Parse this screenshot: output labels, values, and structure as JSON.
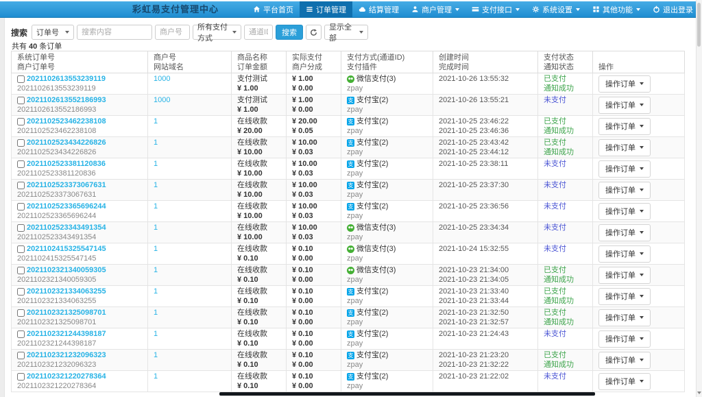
{
  "navbar": {
    "title": "彩虹易支付管理中心",
    "items": [
      {
        "name": "nav-item-home",
        "label": "平台首页",
        "icon": "home-icon",
        "state": "",
        "caret": ""
      },
      {
        "name": "nav-item-orders",
        "label": "订单管理",
        "icon": "orders-icon",
        "state": "active",
        "caret": ""
      },
      {
        "name": "nav-item-settlement",
        "label": "结算管理",
        "icon": "settlement-icon",
        "state": "",
        "caret": ""
      },
      {
        "name": "nav-item-merchants",
        "label": "商户管理",
        "icon": "merchant-icon",
        "state": "",
        "caret": "show"
      },
      {
        "name": "nav-item-pay-api",
        "label": "支付接口",
        "icon": "pay-api-icon",
        "state": "",
        "caret": "show"
      },
      {
        "name": "nav-item-settings",
        "label": "系统设置",
        "icon": "settings-icon",
        "state": "",
        "caret": "show"
      },
      {
        "name": "nav-item-other",
        "label": "其他功能",
        "icon": "other-icon",
        "state": "",
        "caret": "show"
      },
      {
        "name": "nav-item-logout",
        "label": "退出登录",
        "icon": "logout-icon",
        "state": "",
        "caret": ""
      }
    ]
  },
  "search": {
    "label": "搜索",
    "type_select": "订单号",
    "content_placeholder": "搜索内容",
    "merchant_placeholder": "商户号",
    "paytype_select": "所有支付方式",
    "channel_placeholder": "通道ID",
    "search_button": "搜索",
    "show_select": "显示全部",
    "total_prefix": "共有",
    "total_count": "40",
    "total_suffix": "条订单"
  },
  "table": {
    "headers": [
      {
        "line1": "系统订单号",
        "line2": "商户订单号"
      },
      {
        "line1": "商户号",
        "line2": "网站域名"
      },
      {
        "line1": "商品名称",
        "line2": "订单金额"
      },
      {
        "line1": "实际支付",
        "line2": "商户分成"
      },
      {
        "line1": "支付方式(通道ID)",
        "line2": "支付插件"
      },
      {
        "line1": "创建时间",
        "line2": "完成时间"
      },
      {
        "line1": "支付状态",
        "line2": "通知状态"
      },
      {
        "line1": "",
        "line2": "操作"
      }
    ],
    "action_button": "操作订单",
    "rows": [
      {
        "sys_no": "2021102613553239119",
        "merchant_no": "2021102613553239119",
        "merchant_id": "1000",
        "domain": "",
        "product": "支付测试",
        "amount": "¥ 1.00",
        "paid": "¥ 1.00",
        "share": "¥ 0.00",
        "pay": {
          "icon": "wechat-pay-icon",
          "method": "微信支付(3)",
          "plugin": "zpay"
        },
        "created": "2021-10-26 13:55:32",
        "completed": "",
        "status": "已支付",
        "status_class": "st-paid",
        "notify": "通知成功"
      },
      {
        "sys_no": "2021102613552186993",
        "merchant_no": "2021102613552186993",
        "merchant_id": "1000",
        "domain": "",
        "product": "支付测试",
        "amount": "¥ 1.00",
        "paid": "¥ 1.00",
        "share": "¥ 0.00",
        "pay": {
          "icon": "alipay-icon",
          "method": "支付宝(2)",
          "plugin": "zpay"
        },
        "created": "2021-10-26 13:55:21",
        "completed": "",
        "status": "未支付",
        "status_class": "st-unpaid",
        "notify": ""
      },
      {
        "sys_no": "2021102523462238108",
        "merchant_no": "2021102523462238108",
        "merchant_id": "1",
        "domain": "",
        "product": "在线收款",
        "amount": "¥ 20.00",
        "paid": "¥ 20.00",
        "share": "¥ 0.05",
        "pay": {
          "icon": "alipay-icon",
          "method": "支付宝(2)",
          "plugin": "zpay"
        },
        "created": "2021-10-25 23:46:22",
        "completed": "2021-10-25 23:46:36",
        "status": "已支付",
        "status_class": "st-paid",
        "notify": "通知成功"
      },
      {
        "sys_no": "2021102523434226826",
        "merchant_no": "2021102523434226826",
        "merchant_id": "1",
        "domain": "",
        "product": "在线收款",
        "amount": "¥ 10.00",
        "paid": "¥ 10.00",
        "share": "¥ 0.03",
        "pay": {
          "icon": "alipay-icon",
          "method": "支付宝(2)",
          "plugin": "zpay"
        },
        "created": "2021-10-25 23:43:42",
        "completed": "2021-10-25 23:44:12",
        "status": "已支付",
        "status_class": "st-paid",
        "notify": "通知成功"
      },
      {
        "sys_no": "2021102523381120836",
        "merchant_no": "2021102523381120836",
        "merchant_id": "1",
        "domain": "",
        "product": "在线收款",
        "amount": "¥ 10.00",
        "paid": "¥ 10.00",
        "share": "¥ 0.03",
        "pay": {
          "icon": "alipay-icon",
          "method": "支付宝(2)",
          "plugin": "zpay"
        },
        "created": "2021-10-25 23:38:11",
        "completed": "",
        "status": "未支付",
        "status_class": "st-unpaid",
        "notify": ""
      },
      {
        "sys_no": "2021102523373067631",
        "merchant_no": "2021102523373067631",
        "merchant_id": "1",
        "domain": "",
        "product": "在线收款",
        "amount": "¥ 10.00",
        "paid": "¥ 10.00",
        "share": "¥ 0.03",
        "pay": {
          "icon": "alipay-icon",
          "method": "支付宝(2)",
          "plugin": "zpay"
        },
        "created": "2021-10-25 23:37:30",
        "completed": "",
        "status": "未支付",
        "status_class": "st-unpaid",
        "notify": ""
      },
      {
        "sys_no": "2021102523365696244",
        "merchant_no": "2021102523365696244",
        "merchant_id": "1",
        "domain": "",
        "product": "在线收款",
        "amount": "¥ 10.00",
        "paid": "¥ 10.00",
        "share": "¥ 0.03",
        "pay": {
          "icon": "alipay-icon",
          "method": "支付宝(2)",
          "plugin": "zpay"
        },
        "created": "2021-10-25 23:36:56",
        "completed": "",
        "status": "未支付",
        "status_class": "st-unpaid",
        "notify": ""
      },
      {
        "sys_no": "2021102523343491354",
        "merchant_no": "2021102523343491354",
        "merchant_id": "1",
        "domain": "",
        "product": "在线收款",
        "amount": "¥ 10.00",
        "paid": "¥ 10.00",
        "share": "¥ 0.03",
        "pay": {
          "icon": "wechat-pay-icon",
          "method": "微信支付(3)",
          "plugin": "zpay"
        },
        "created": "2021-10-25 23:34:34",
        "completed": "",
        "status": "未支付",
        "status_class": "st-unpaid",
        "notify": ""
      },
      {
        "sys_no": "2021102415325547145",
        "merchant_no": "2021102415325547145",
        "merchant_id": "1",
        "domain": "",
        "product": "在线收款",
        "amount": "¥ 0.10",
        "paid": "¥ 0.10",
        "share": "¥ 0.00",
        "pay": {
          "icon": "wechat-pay-icon",
          "method": "微信支付(3)",
          "plugin": "zpay"
        },
        "created": "2021-10-24 15:32:55",
        "completed": "",
        "status": "未支付",
        "status_class": "st-unpaid",
        "notify": ""
      },
      {
        "sys_no": "2021102321340059305",
        "merchant_no": "2021102321340059305",
        "merchant_id": "1",
        "domain": "",
        "product": "在线收款",
        "amount": "¥ 0.10",
        "paid": "¥ 0.10",
        "share": "¥ 0.00",
        "pay": {
          "icon": "wechat-pay-icon",
          "method": "微信支付(3)",
          "plugin": "zpay"
        },
        "created": "2021-10-23 21:34:00",
        "completed": "2021-10-23 21:34:05",
        "status": "已支付",
        "status_class": "st-paid",
        "notify": "通知成功"
      },
      {
        "sys_no": "2021102321334063255",
        "merchant_no": "2021102321334063255",
        "merchant_id": "1",
        "domain": "",
        "product": "在线收款",
        "amount": "¥ 0.10",
        "paid": "¥ 0.10",
        "share": "¥ 0.00",
        "pay": {
          "icon": "alipay-icon",
          "method": "支付宝(2)",
          "plugin": "zpay"
        },
        "created": "2021-10-23 21:33:40",
        "completed": "2021-10-23 21:33:44",
        "status": "已支付",
        "status_class": "st-paid",
        "notify": "通知成功"
      },
      {
        "sys_no": "2021102321325098701",
        "merchant_no": "2021102321325098701",
        "merchant_id": "1",
        "domain": "",
        "product": "在线收款",
        "amount": "¥ 0.10",
        "paid": "¥ 0.10",
        "share": "¥ 0.00",
        "pay": {
          "icon": "alipay-icon",
          "method": "支付宝(2)",
          "plugin": "zpay"
        },
        "created": "2021-10-23 21:32:50",
        "completed": "2021-10-23 21:32:57",
        "status": "已支付",
        "status_class": "st-paid",
        "notify": "通知成功"
      },
      {
        "sys_no": "2021102321244398187",
        "merchant_no": "2021102321244398187",
        "merchant_id": "1",
        "domain": "",
        "product": "在线收款",
        "amount": "¥ 0.10",
        "paid": "¥ 0.10",
        "share": "¥ 0.00",
        "pay": {
          "icon": "alipay-icon",
          "method": "支付宝(2)",
          "plugin": "zpay"
        },
        "created": "2021-10-23 21:24:43",
        "completed": "",
        "status": "未支付",
        "status_class": "st-unpaid",
        "notify": ""
      },
      {
        "sys_no": "2021102321232096323",
        "merchant_no": "2021102321232096323",
        "merchant_id": "1",
        "domain": "",
        "product": "在线收款",
        "amount": "¥ 0.10",
        "paid": "¥ 0.10",
        "share": "¥ 0.00",
        "pay": {
          "icon": "alipay-icon",
          "method": "支付宝(2)",
          "plugin": "zpay"
        },
        "created": "2021-10-23 21:23:20",
        "completed": "2021-10-23 21:32:22",
        "status": "已支付",
        "status_class": "st-paid",
        "notify": "通知成功"
      },
      {
        "sys_no": "2021102321220278364",
        "merchant_no": "2021102321220278364",
        "merchant_id": "1",
        "domain": "",
        "product": "在线收款",
        "amount": "¥ 0.10",
        "paid": "¥ 0.10",
        "share": "¥ 0.00",
        "pay": {
          "icon": "alipay-icon",
          "method": "支付宝(2)",
          "plugin": "zpay"
        },
        "created": "2021-10-23 21:22:02",
        "completed": "",
        "status": "未支付",
        "status_class": "st-unpaid",
        "notify": ""
      }
    ]
  },
  "colors": {
    "navbar_blue": "#2f9cdb",
    "navbar_active": "#0f6fae",
    "link_blue": "#27b3e6",
    "paid_green": "#3da44b",
    "unpaid_blue": "#4a54d4",
    "wechat_green": "#45b035",
    "alipay_blue": "#06a5e9",
    "search_button_blue": "#2b9fd9"
  }
}
